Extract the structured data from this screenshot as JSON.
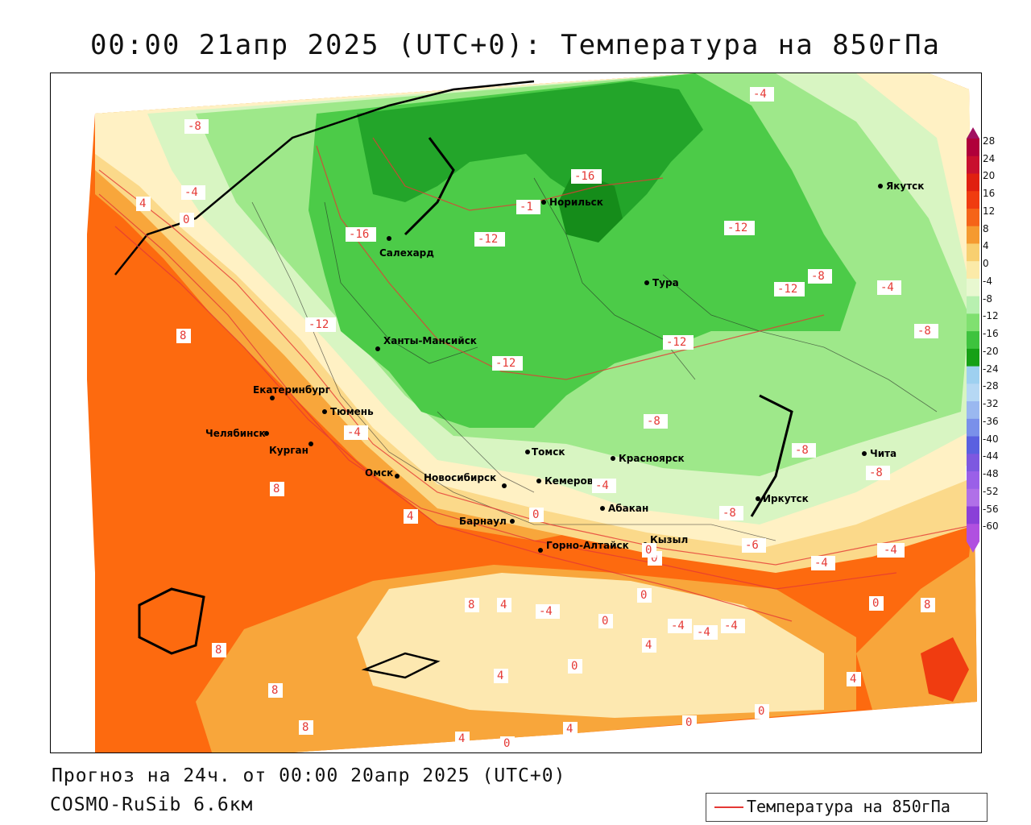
{
  "title": "00:00 21апр 2025 (UTC+0): Температура на 850гПа",
  "forecast_line": "Прогноз на 24ч. от 00:00 20апр 2025 (UTC+0)",
  "model_line": "COSMO-RuSib 6.6км",
  "legend_label": "Температура на 850гПа",
  "legend_color": "#e53935",
  "cities": [
    {
      "name": "Якутск"
    },
    {
      "name": "Норильск"
    },
    {
      "name": "Салехард"
    },
    {
      "name": "Тура"
    },
    {
      "name": "Ханты-Мансийск"
    },
    {
      "name": "Екатеринбург"
    },
    {
      "name": "Тюмень"
    },
    {
      "name": "Челябинск"
    },
    {
      "name": "Курган"
    },
    {
      "name": "Омск"
    },
    {
      "name": "Новосибирск"
    },
    {
      "name": "Томск"
    },
    {
      "name": "Кемерово"
    },
    {
      "name": "Красноярск"
    },
    {
      "name": "Абакан"
    },
    {
      "name": "Барнаул"
    },
    {
      "name": "Горно-Алтайск"
    },
    {
      "name": "Кызыл"
    },
    {
      "name": "Иркутск"
    },
    {
      "name": "Чита"
    }
  ],
  "isotherm_labels": [
    "-8",
    "-4",
    "4",
    "0",
    "8",
    "-16",
    "-12",
    "-16",
    "-1",
    "-12",
    "-12",
    "-4",
    "-12",
    "-8",
    "-4",
    "-8",
    "-12",
    "-12",
    "-8",
    "-4",
    "4",
    "8",
    "0",
    "-4",
    "-8",
    "-6",
    "-4",
    "-4",
    "0",
    "0",
    "-4",
    "-4",
    "0",
    "-4",
    "-4",
    "0",
    "8",
    "4",
    "4",
    "0",
    "4",
    "8",
    "8",
    "8",
    "4",
    "0",
    "0",
    "0",
    "4",
    "8",
    "4",
    "0",
    "-8",
    "-8",
    "-4",
    "0"
  ],
  "scale": {
    "values": [
      "28",
      "24",
      "20",
      "16",
      "12",
      "8",
      "4",
      "0",
      "-4",
      "-8",
      "-12",
      "-16",
      "-20",
      "-24",
      "-28",
      "-32",
      "-36",
      "-40",
      "-44",
      "-48",
      "-52",
      "-56",
      "-60"
    ],
    "colors": [
      "#b0003a",
      "#c8102e",
      "#e02010",
      "#f03c10",
      "#f56418",
      "#f59a30",
      "#f8cf70",
      "#fbeaa8",
      "#e8f8d0",
      "#b8f0b0",
      "#80e070",
      "#3ec33e",
      "#16a016",
      "#9ed0f0",
      "#b6d8f4",
      "#9ab8f0",
      "#7a90ea",
      "#5a60e0",
      "#7d58e0",
      "#9a60e8",
      "#b070e8",
      "#8a40d8",
      "#b050e0"
    ]
  }
}
